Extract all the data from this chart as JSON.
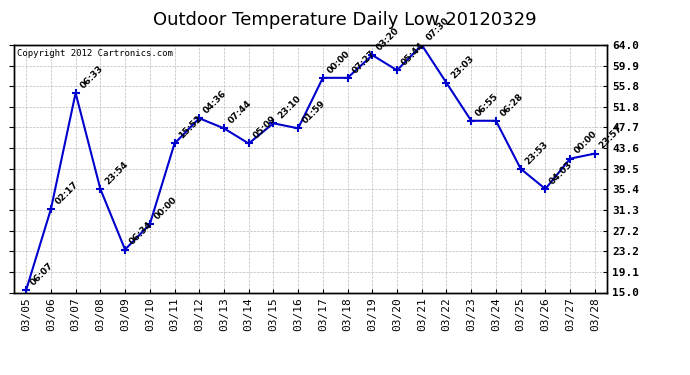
{
  "title": "Outdoor Temperature Daily Low 20120329",
  "copyright_text": "Copyright 2012 Cartronics.com",
  "dates": [
    "03/05",
    "03/06",
    "03/07",
    "03/08",
    "03/09",
    "03/10",
    "03/11",
    "03/12",
    "03/13",
    "03/14",
    "03/15",
    "03/16",
    "03/17",
    "03/18",
    "03/19",
    "03/20",
    "03/21",
    "03/22",
    "03/23",
    "03/24",
    "03/25",
    "03/26",
    "03/27",
    "03/28"
  ],
  "values": [
    15.5,
    31.5,
    54.5,
    35.5,
    23.5,
    28.5,
    44.5,
    49.5,
    47.5,
    44.5,
    48.5,
    47.5,
    57.5,
    57.5,
    62.0,
    59.0,
    64.0,
    56.5,
    49.0,
    49.0,
    39.5,
    35.5,
    41.5,
    42.5
  ],
  "annotations": [
    "06:07",
    "02:17",
    "06:33",
    "23:54",
    "06:34",
    "00:00",
    "15:52",
    "04:36",
    "07:44",
    "05:09",
    "23:10",
    "01:59",
    "00:00",
    "07:27",
    "03:20",
    "05:44",
    "07:30",
    "23:03",
    "06:55",
    "06:28",
    "23:53",
    "04:03",
    "00:00",
    "23:57"
  ],
  "ylim_min": 15.0,
  "ylim_max": 64.0,
  "yticks": [
    15.0,
    19.1,
    23.2,
    27.2,
    31.3,
    35.4,
    39.5,
    43.6,
    47.7,
    51.8,
    55.8,
    59.9,
    64.0
  ],
  "ytick_labels": [
    "15.0",
    "19.1",
    "23.2",
    "27.2",
    "31.3",
    "35.4",
    "39.5",
    "43.6",
    "47.7",
    "51.8",
    "55.8",
    "59.9",
    "64.0"
  ],
  "line_color": "#0000cc",
  "bg_color": "#ffffff",
  "grid_color": "#bbbbbb",
  "title_fontsize": 13,
  "annotation_fontsize": 6.5,
  "tick_fontsize": 8,
  "copyright_fontsize": 6.5
}
